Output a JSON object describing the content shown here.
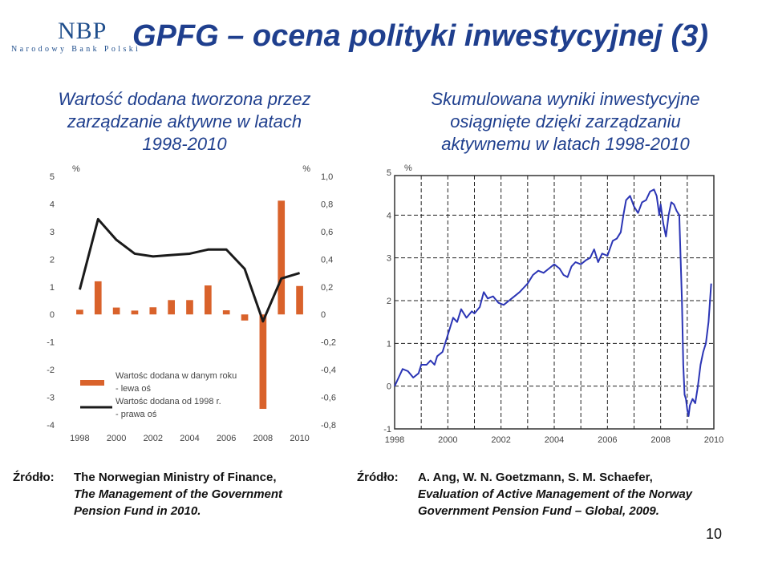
{
  "logo": {
    "short": "NBP",
    "full": "Narodowy Bank Polski"
  },
  "slide_title": "GPFG – ocena polityki inwestycyjnej (3)",
  "left_panel": {
    "title_lines": [
      "Wartość dodana tworzona przez",
      "zarządzanie aktywne w latach",
      "1998-2010"
    ],
    "source_label": "Źródło:",
    "source_lines": [
      "The Norwegian Ministry of Finance,",
      "The Management of the Government",
      "Pension Fund in 2010."
    ]
  },
  "right_panel": {
    "title_lines": [
      "Skumulowana wyniki inwestycyjne",
      "osiągnięte dzięki zarządzaniu",
      "aktywnemu w latach 1998-2010"
    ],
    "source_label": "Źródło:",
    "source_lines": [
      "A. Ang, W. N. Goetzmann, S. M. Schaefer,",
      "Evaluation of Active Management of the Norway",
      "Government Pension Fund – Global, 2009."
    ]
  },
  "page_number": "10",
  "colors": {
    "title": "#1f3f8e",
    "bar": "#d9622b",
    "line_left": "#1a1a1a",
    "line_right": "#2b35b5",
    "logo": "#1f4e8c"
  },
  "chart_data": [
    {
      "type": "bar",
      "left_unit": "%",
      "right_unit": "%",
      "categories": [
        "1998",
        "1999",
        "2000",
        "2001",
        "2002",
        "2003",
        "2004",
        "2005",
        "2006",
        "2007",
        "2008",
        "2009",
        "2010"
      ],
      "x_tick_labels": [
        "1998",
        "2000",
        "2002",
        "2004",
        "2006",
        "2008",
        "2010"
      ],
      "left_axis": {
        "ylim": [
          -4,
          5
        ],
        "ticks": [
          "5",
          "4",
          "3",
          "2",
          "1",
          "0",
          "-1",
          "-2",
          "-3",
          "-4"
        ]
      },
      "right_axis": {
        "ylim": [
          -0.8,
          1.0
        ],
        "ticks": [
          "1,0",
          "0,8",
          "0,6",
          "0,4",
          "0,2",
          "0",
          "-0,2",
          "-0,4",
          "-0,6",
          "-0,8"
        ]
      },
      "series": [
        {
          "name": "Wartośc dodana w danym roku",
          "axis_note": "- lewa oś",
          "kind": "bar",
          "values": [
            0.17,
            1.2,
            0.25,
            0.14,
            0.26,
            0.52,
            0.52,
            1.05,
            0.15,
            -0.22,
            -3.42,
            4.12,
            1.03
          ]
        },
        {
          "name": "Wartośc dodana od 1998 r.",
          "axis_note": "- prawa oś",
          "kind": "line",
          "values": [
            0.18,
            0.69,
            0.54,
            0.44,
            0.42,
            0.43,
            0.44,
            0.47,
            0.47,
            0.33,
            -0.05,
            0.26,
            0.3
          ]
        }
      ],
      "legend": {
        "placement": "bottom-left"
      },
      "grid": false
    },
    {
      "type": "line",
      "y_unit": "%",
      "ylim": [
        -1,
        5
      ],
      "y_ticks": [
        "5",
        "4",
        "3",
        "2",
        "1",
        "0",
        "-1"
      ],
      "x_tick_labels": [
        "1998",
        "2000",
        "2002",
        "2004",
        "2006",
        "2008",
        "2010"
      ],
      "xlim": [
        1998,
        2010
      ],
      "grid": true,
      "series": [
        {
          "x": [
            1998.0,
            1998.15,
            1998.3,
            1998.5,
            1998.7,
            1998.9,
            1999.0,
            1999.2,
            1999.35,
            1999.5,
            1999.6,
            1999.8,
            2000.0,
            2000.2,
            2000.35,
            2000.5,
            2000.7,
            2000.9,
            2001.0,
            2001.2,
            2001.35,
            2001.5,
            2001.7,
            2001.9,
            2002.1,
            2002.3,
            2002.5,
            2002.7,
            2002.85,
            2003.0,
            2003.2,
            2003.4,
            2003.6,
            2003.8,
            2004.0,
            2004.2,
            2004.35,
            2004.5,
            2004.65,
            2004.8,
            2005.0,
            2005.2,
            2005.35,
            2005.5,
            2005.65,
            2005.8,
            2006.0,
            2006.2,
            2006.35,
            2006.5,
            2006.6,
            2006.7,
            2006.85,
            2007.0,
            2007.15,
            2007.3,
            2007.45,
            2007.6,
            2007.75,
            2007.85,
            2007.95,
            2008.0,
            2008.1,
            2008.2,
            2008.3,
            2008.4,
            2008.5,
            2008.6,
            2008.7,
            2008.8,
            2008.85,
            2008.9,
            2008.95,
            2009.0,
            2009.05,
            2009.1,
            2009.2,
            2009.3,
            2009.4,
            2009.5,
            2009.6,
            2009.7,
            2009.8,
            2009.9
          ],
          "y": [
            0.0,
            0.2,
            0.4,
            0.35,
            0.2,
            0.3,
            0.5,
            0.5,
            0.6,
            0.5,
            0.7,
            0.8,
            1.2,
            1.6,
            1.5,
            1.8,
            1.6,
            1.75,
            1.7,
            1.85,
            2.2,
            2.05,
            2.1,
            1.95,
            1.9,
            2.0,
            2.1,
            2.2,
            2.3,
            2.4,
            2.6,
            2.7,
            2.65,
            2.75,
            2.85,
            2.75,
            2.6,
            2.55,
            2.8,
            2.9,
            2.85,
            2.95,
            3.0,
            3.2,
            2.9,
            3.1,
            3.05,
            3.4,
            3.45,
            3.6,
            4.0,
            4.35,
            4.45,
            4.2,
            4.05,
            4.3,
            4.35,
            4.55,
            4.6,
            4.45,
            4.0,
            4.25,
            3.8,
            3.5,
            4.0,
            4.3,
            4.25,
            4.1,
            4.0,
            2.0,
            0.5,
            -0.2,
            -0.3,
            -0.55,
            -0.7,
            -0.45,
            -0.3,
            -0.4,
            0.0,
            0.5,
            0.8,
            1.0,
            1.5,
            2.4
          ]
        }
      ]
    }
  ]
}
